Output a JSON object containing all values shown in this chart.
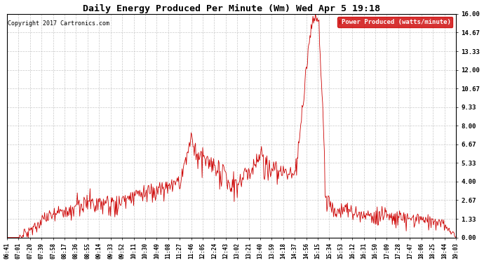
{
  "title": "Daily Energy Produced Per Minute (Wm) Wed Apr 5 19:18",
  "copyright": "Copyright 2017 Cartronics.com",
  "legend_label": "Power Produced (watts/minute)",
  "legend_bg": "#cc0000",
  "legend_fg": "#ffffff",
  "line_color": "#cc0000",
  "bg_color": "#ffffff",
  "grid_color": "#bbbbbb",
  "ylim": [
    0,
    16.0
  ],
  "yticks": [
    0.0,
    1.33,
    2.67,
    4.0,
    5.33,
    6.67,
    8.0,
    9.33,
    10.67,
    12.0,
    13.33,
    14.67,
    16.0
  ],
  "xtick_labels": [
    "06:41",
    "07:01",
    "07:20",
    "07:39",
    "07:58",
    "08:17",
    "08:36",
    "08:55",
    "09:14",
    "09:33",
    "09:52",
    "10:11",
    "10:30",
    "10:49",
    "11:08",
    "11:27",
    "11:46",
    "12:05",
    "12:24",
    "12:43",
    "13:02",
    "13:21",
    "13:40",
    "13:59",
    "14:18",
    "14:37",
    "14:56",
    "15:15",
    "15:34",
    "15:53",
    "16:12",
    "16:31",
    "16:50",
    "17:09",
    "17:28",
    "17:47",
    "18:06",
    "18:25",
    "18:44",
    "19:03"
  ]
}
